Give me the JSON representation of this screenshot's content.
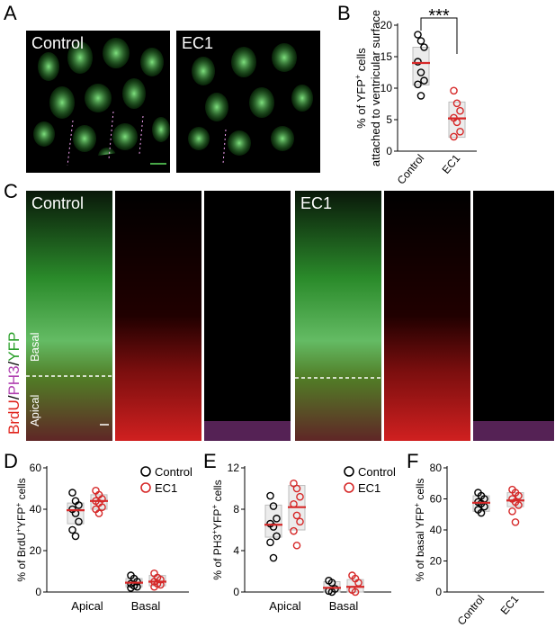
{
  "panels": {
    "A": {
      "letter": "A",
      "control_label": "Control",
      "ec1_label": "EC1"
    },
    "B": {
      "letter": "B"
    },
    "C": {
      "letter": "C",
      "control_label": "Control",
      "ec1_label": "EC1",
      "stain_brdu": "BrdU",
      "stain_ph3": "PH3",
      "stain_yfp": "YFP",
      "basal_label": "Basal",
      "apical_label": "Apical"
    },
    "D": {
      "letter": "D"
    },
    "E": {
      "letter": "E"
    },
    "F": {
      "letter": "F"
    }
  },
  "colors": {
    "control": "#000000",
    "ec1": "#d62828",
    "green": "#3fbf3f",
    "red": "#e0231b",
    "magenta": "#c050c0"
  },
  "chart_data": [
    {
      "id": "B",
      "type": "scatter",
      "ylabel": "% of YFP+ cells attached to ventricular surface",
      "categories": [
        "Control",
        "EC1"
      ],
      "ylim": [
        0,
        20
      ],
      "yticks": [
        0,
        5,
        10,
        15,
        20
      ],
      "significance": "***",
      "series": [
        {
          "name": "Control",
          "mean": 14,
          "box": [
            10.5,
            16.5
          ],
          "points": [
            18.5,
            17.5,
            16.5,
            14.2,
            12.5,
            11.2,
            10.6,
            8.8
          ]
        },
        {
          "name": "EC1",
          "mean": 5.2,
          "box": [
            2.2,
            7.8
          ],
          "points": [
            9.6,
            7.6,
            6.4,
            5.3,
            4.6,
            3.1,
            2.3
          ]
        }
      ]
    },
    {
      "id": "D",
      "type": "scatter",
      "ylabel": "% of BrdU+YFP+ cells",
      "categories": [
        "Apical",
        "Basal"
      ],
      "ylim": [
        0,
        60
      ],
      "yticks": [
        0,
        20,
        40,
        60
      ],
      "legend": [
        "Control",
        "EC1"
      ],
      "series": [
        {
          "name": "Control",
          "groups": [
            {
              "mean": 39.5,
              "box": [
                33,
                43
              ],
              "points": [
                48,
                44,
                42,
                40,
                38,
                34,
                30,
                27
              ]
            },
            {
              "mean": 4.5,
              "box": [
                2.5,
                6.5
              ],
              "points": [
                8,
                6.5,
                5,
                4,
                3,
                2.5,
                2
              ]
            }
          ]
        },
        {
          "name": "EC1",
          "groups": [
            {
              "mean": 44,
              "box": [
                40,
                47
              ],
              "points": [
                49,
                47,
                45,
                44,
                43,
                41,
                40,
                38
              ]
            },
            {
              "mean": 5,
              "box": [
                3,
                8
              ],
              "points": [
                9,
                7,
                6,
                5,
                4,
                3.5,
                2.5
              ]
            }
          ]
        }
      ]
    },
    {
      "id": "E",
      "type": "scatter",
      "ylabel": "% of PH3+YFP+ cells",
      "categories": [
        "Apical",
        "Basal"
      ],
      "ylim": [
        0,
        12
      ],
      "yticks": [
        0,
        4,
        8,
        12
      ],
      "legend": [
        "Control",
        "EC1"
      ],
      "series": [
        {
          "name": "Control",
          "groups": [
            {
              "mean": 6.5,
              "box": [
                5.3,
                8.4
              ],
              "points": [
                9.3,
                8.3,
                7.1,
                6.6,
                6.3,
                5.4,
                4.8,
                3.3
              ]
            },
            {
              "mean": 0.4,
              "box": [
                0,
                1.0
              ],
              "points": [
                1.1,
                0.9,
                0.3,
                0.1,
                0
              ]
            }
          ]
        },
        {
          "name": "EC1",
          "groups": [
            {
              "mean": 8.2,
              "box": [
                6.0,
                10.3
              ],
              "points": [
                10.5,
                10.0,
                9.2,
                8.5,
                7.4,
                6.8,
                5.9,
                4.5
              ]
            },
            {
              "mean": 0.5,
              "box": [
                0,
                1.2
              ],
              "points": [
                1.6,
                1.3,
                0.9,
                0.2,
                0
              ]
            }
          ]
        }
      ]
    },
    {
      "id": "F",
      "type": "scatter",
      "ylabel": "% of basal YFP+ cells",
      "categories": [
        "Control",
        "EC1"
      ],
      "ylim": [
        0,
        80
      ],
      "yticks": [
        0,
        20,
        40,
        60,
        80
      ],
      "series": [
        {
          "name": "Control",
          "mean": 57.5,
          "box": [
            52,
            62
          ],
          "points": [
            64,
            62,
            60,
            58,
            57,
            55,
            53,
            51
          ]
        },
        {
          "name": "EC1",
          "mean": 59,
          "box": [
            55,
            64
          ],
          "points": [
            66,
            64,
            62,
            60,
            58,
            56,
            52,
            45
          ]
        }
      ]
    }
  ]
}
